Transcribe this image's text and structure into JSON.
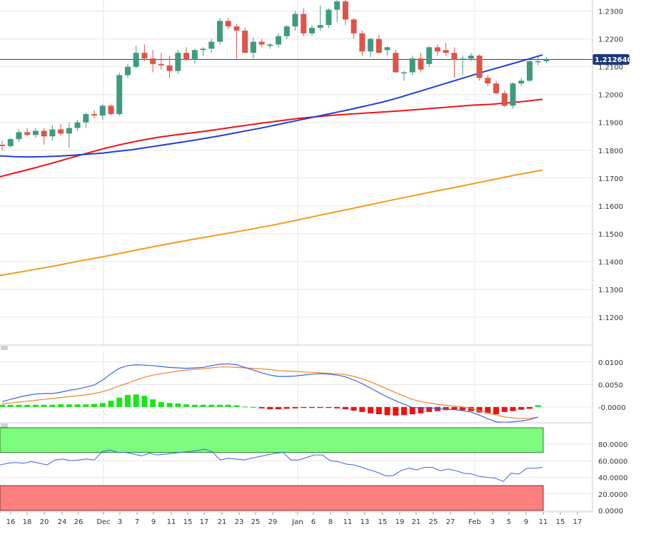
{
  "colors": {
    "bull": "#3e9b7f",
    "bear": "#e0534a",
    "sma_fast": "#1f3fd6",
    "sma_mid": "#e8141a",
    "sma_slow": "#f39a1e",
    "macd_line": "#3f62e8",
    "macd_signal": "#f0842a",
    "hist_pos": "#19e619",
    "hist_neg": "#ee1111",
    "rsi_line": "#3f62e8",
    "rsi_overbought": "#7cfb7c",
    "rsi_oversold": "#fb7f7f",
    "grid": "#e6e6e6",
    "price_line": "#1b3a7a",
    "price_tag": "#1b3a7a"
  },
  "price_tag": "1.212640",
  "chart_data": [
    {
      "type": "candlestick",
      "ylim": [
        1.11,
        1.234
      ],
      "yticks": [
        "1.2300",
        "1.2200",
        "1.2100",
        "1.2000",
        "1.1900",
        "1.1800",
        "1.1700",
        "1.1600",
        "1.1500",
        "1.1400",
        "1.1300",
        "1.1200"
      ],
      "ytick_values": [
        1.23,
        1.22,
        1.21,
        1.2,
        1.19,
        1.18,
        1.17,
        1.16,
        1.15,
        1.14,
        1.13,
        1.12
      ],
      "last_price": 1.21264,
      "candles": [
        [
          1.182,
          1.1835,
          1.18,
          1.1815
        ],
        [
          1.1815,
          1.1845,
          1.181,
          1.184
        ],
        [
          1.184,
          1.1875,
          1.183,
          1.1865
        ],
        [
          1.1865,
          1.188,
          1.185,
          1.1855
        ],
        [
          1.1855,
          1.188,
          1.1845,
          1.187
        ],
        [
          1.187,
          1.188,
          1.182,
          1.185
        ],
        [
          1.185,
          1.189,
          1.1835,
          1.1875
        ],
        [
          1.1875,
          1.1895,
          1.185,
          1.186
        ],
        [
          1.186,
          1.19,
          1.181,
          1.188
        ],
        [
          1.188,
          1.191,
          1.187,
          1.19
        ],
        [
          1.19,
          1.1935,
          1.188,
          1.193
        ],
        [
          1.193,
          1.1945,
          1.1915,
          1.1925
        ],
        [
          1.1925,
          1.1965,
          1.191,
          1.196
        ],
        [
          1.196,
          1.1965,
          1.1925,
          1.193
        ],
        [
          1.193,
          1.208,
          1.1925,
          1.207
        ],
        [
          1.207,
          1.211,
          1.206,
          1.21
        ],
        [
          1.21,
          1.2175,
          1.2095,
          1.215
        ],
        [
          1.215,
          1.218,
          1.212,
          1.213
        ],
        [
          1.213,
          1.216,
          1.208,
          1.211
        ],
        [
          1.211,
          1.215,
          1.209,
          1.2105
        ],
        [
          1.2105,
          1.214,
          1.206,
          1.2085
        ],
        [
          1.2085,
          1.216,
          1.2075,
          1.215
        ],
        [
          1.215,
          1.217,
          1.212,
          1.2125
        ],
        [
          1.2125,
          1.2165,
          1.211,
          1.216
        ],
        [
          1.216,
          1.217,
          1.214,
          1.2165
        ],
        [
          1.2165,
          1.22,
          1.215,
          1.219
        ],
        [
          1.219,
          1.2275,
          1.218,
          1.2265
        ],
        [
          1.2265,
          1.2275,
          1.2235,
          1.2245
        ],
        [
          1.2245,
          1.2255,
          1.213,
          1.223
        ],
        [
          1.223,
          1.224,
          1.215,
          1.215
        ],
        [
          1.215,
          1.2205,
          1.213,
          1.219
        ],
        [
          1.219,
          1.22,
          1.217,
          1.218
        ],
        [
          1.2175,
          1.2185,
          1.2165,
          1.218
        ],
        [
          1.218,
          1.222,
          1.217,
          1.221
        ],
        [
          1.221,
          1.225,
          1.22,
          1.2245
        ],
        [
          1.2245,
          1.23,
          1.223,
          1.229
        ],
        [
          1.229,
          1.231,
          1.221,
          1.222
        ],
        [
          1.222,
          1.225,
          1.221,
          1.224
        ],
        [
          1.224,
          1.232,
          1.223,
          1.225
        ],
        [
          1.225,
          1.231,
          1.224,
          1.2305
        ],
        [
          1.2305,
          1.2345,
          1.226,
          1.2335
        ],
        [
          1.2335,
          1.234,
          1.225,
          1.227
        ],
        [
          1.227,
          1.2275,
          1.22,
          1.222
        ],
        [
          1.222,
          1.223,
          1.214,
          1.2155
        ],
        [
          1.2155,
          1.2205,
          1.2135,
          1.22
        ],
        [
          1.22,
          1.2215,
          1.215,
          1.215
        ],
        [
          1.216,
          1.2175,
          1.214,
          1.217
        ],
        [
          1.215,
          1.216,
          1.208,
          1.208
        ],
        [
          1.208,
          1.2085,
          1.205,
          1.208
        ],
        [
          1.208,
          1.214,
          1.207,
          1.213
        ],
        [
          1.213,
          1.215,
          1.208,
          1.209
        ],
        [
          1.211,
          1.2175,
          1.21,
          1.217
        ],
        [
          1.217,
          1.218,
          1.214,
          1.2155
        ],
        [
          1.216,
          1.2185,
          1.214,
          1.215
        ],
        [
          1.215,
          1.217,
          1.206,
          1.2125
        ],
        [
          1.2125,
          1.214,
          1.207,
          1.213
        ],
        [
          1.213,
          1.215,
          1.212,
          1.214
        ],
        [
          1.214,
          1.2145,
          1.205,
          1.206
        ],
        [
          1.206,
          1.207,
          1.203,
          1.204
        ],
        [
          1.204,
          1.205,
          1.2,
          1.2005
        ],
        [
          1.2005,
          1.2015,
          1.1955,
          1.196
        ],
        [
          1.196,
          1.2045,
          1.195,
          1.204
        ],
        [
          1.204,
          1.206,
          1.203,
          1.205
        ],
        [
          1.205,
          1.213,
          1.2045,
          1.212
        ],
        [
          1.212,
          1.2135,
          1.2105,
          1.212
        ],
        [
          1.212,
          1.2135,
          1.2115,
          1.2126
        ]
      ],
      "sma_fast": [
        1.178,
        1.1777,
        1.1776,
        1.1777,
        1.1779,
        1.1782,
        1.1786,
        1.179,
        1.1796,
        1.1802,
        1.181,
        1.1818,
        1.1826,
        1.1834,
        1.1843,
        1.1852,
        1.1862,
        1.1872,
        1.1882,
        1.1893,
        1.1904,
        1.1915,
        1.1926,
        1.1937,
        1.1948,
        1.196,
        1.1972,
        1.1986,
        1.2002,
        1.2018,
        1.2034,
        1.205,
        1.2066,
        1.2082,
        1.2097,
        1.2112,
        1.2127,
        1.2143
      ],
      "sma_mid": [
        1.1705,
        1.1721,
        1.1737,
        1.1754,
        1.1772,
        1.179,
        1.1807,
        1.1822,
        1.1835,
        1.1846,
        1.1855,
        1.1863,
        1.1871,
        1.188,
        1.1889,
        1.1898,
        1.1906,
        1.1914,
        1.192,
        1.1926,
        1.193,
        1.1934,
        1.1938,
        1.1942,
        1.1947,
        1.1952,
        1.1957,
        1.1962,
        1.1965,
        1.197,
        1.1976,
        1.1983
      ],
      "sma_slow": [
        1.135,
        1.1367,
        1.1384,
        1.1403,
        1.1421,
        1.1441,
        1.146,
        1.1478,
        1.1495,
        1.1512,
        1.153,
        1.155,
        1.1571,
        1.1591,
        1.1612,
        1.1632,
        1.1652,
        1.1671,
        1.1691,
        1.1711,
        1.1729
      ]
    },
    {
      "type": "macd",
      "ylim": [
        -0.0035,
        0.0125
      ],
      "yticks": [
        "0.0100",
        "0.0050",
        "-0.0000"
      ],
      "ytick_values": [
        0.01,
        0.005,
        0.0
      ],
      "macd": [
        0.0012,
        0.0017,
        0.0022,
        0.0026,
        0.0029,
        0.003,
        0.003,
        0.0033,
        0.0037,
        0.004,
        0.0044,
        0.0049,
        0.006,
        0.0074,
        0.0086,
        0.0092,
        0.0094,
        0.0093,
        0.0092,
        0.009,
        0.0088,
        0.0087,
        0.0086,
        0.0087,
        0.0088,
        0.0092,
        0.0095,
        0.0096,
        0.0094,
        0.0088,
        0.0082,
        0.0076,
        0.0071,
        0.0068,
        0.0068,
        0.0069,
        0.0071,
        0.0073,
        0.0074,
        0.0073,
        0.0071,
        0.0067,
        0.006,
        0.0052,
        0.0042,
        0.0032,
        0.0022,
        0.0014,
        0.0006,
        -0.0001,
        -0.0002,
        -0.0002,
        -0.0003,
        -0.0005,
        -0.0006,
        -0.0008,
        -0.0011,
        -0.0018,
        -0.0026,
        -0.0033,
        -0.0034,
        -0.0033,
        -0.0031,
        -0.0028,
        -0.0022
      ],
      "signal": [
        0.0007,
        0.0009,
        0.0011,
        0.0013,
        0.0015,
        0.0017,
        0.0019,
        0.0021,
        0.0023,
        0.0025,
        0.0027,
        0.003,
        0.0034,
        0.004,
        0.0047,
        0.0053,
        0.006,
        0.0066,
        0.0071,
        0.0074,
        0.0077,
        0.008,
        0.0082,
        0.0084,
        0.0085,
        0.0087,
        0.0089,
        0.0089,
        0.0088,
        0.0087,
        0.0086,
        0.0085,
        0.0083,
        0.0081,
        0.008,
        0.0079,
        0.0078,
        0.0077,
        0.0076,
        0.0075,
        0.0074,
        0.0072,
        0.0068,
        0.0063,
        0.0056,
        0.0048,
        0.004,
        0.0032,
        0.0024,
        0.0017,
        0.0012,
        0.0009,
        0.0006,
        0.0004,
        0.0002,
        0.0,
        -0.0003,
        -0.0008,
        -0.0013,
        -0.0018,
        -0.0022,
        -0.0024,
        -0.0025,
        -0.0025,
        -0.0023
      ],
      "histogram": [
        0.0005,
        0.0005,
        0.0005,
        0.0005,
        0.0005,
        0.0005,
        0.0005,
        0.0006,
        0.0006,
        0.0006,
        0.0006,
        0.0007,
        0.0009,
        0.0014,
        0.0021,
        0.0027,
        0.0028,
        0.0025,
        0.0017,
        0.0011,
        0.0009,
        0.0008,
        0.0006,
        0.0005,
        0.0005,
        0.0005,
        0.0005,
        0.0005,
        0.0004,
        0.0001,
        0.0,
        -0.0003,
        -0.0005,
        -0.0005,
        -0.0004,
        -0.0003,
        -0.0002,
        -0.0002,
        -0.0002,
        -0.0002,
        -0.0003,
        -0.0005,
        -0.0008,
        -0.0011,
        -0.0014,
        -0.0016,
        -0.0018,
        -0.0019,
        -0.0018,
        -0.0016,
        -0.0014,
        -0.0011,
        -0.0009,
        -0.0007,
        -0.0006,
        -0.0007,
        -0.0009,
        -0.0012,
        -0.0014,
        -0.0016,
        -0.0011,
        -0.0009,
        -0.0006,
        -0.0004,
        0.0004
      ]
    },
    {
      "type": "rsi",
      "ylim": [
        0,
        100
      ],
      "yticks": [
        "80.0000",
        "60.0000",
        "40.0000",
        "20.0000",
        "0.0000"
      ],
      "ytick_values": [
        80,
        60,
        40,
        20,
        0
      ],
      "overbought_band": [
        70,
        100
      ],
      "oversold_band": [
        0,
        30
      ],
      "values": [
        55,
        57,
        58,
        57,
        59,
        57,
        55,
        61,
        62,
        60,
        61,
        62,
        61,
        71,
        73,
        70,
        70,
        68,
        66,
        69,
        67,
        68,
        69,
        70,
        71,
        72,
        74,
        71,
        61,
        63,
        62,
        61,
        63,
        65,
        67,
        69,
        70,
        61,
        61,
        64,
        67,
        67,
        60,
        59,
        56,
        55,
        52,
        49,
        46,
        42,
        42,
        48,
        51,
        49,
        52,
        52,
        48,
        50,
        48,
        45,
        44,
        41,
        40,
        39,
        35,
        45,
        44,
        51,
        51,
        52
      ]
    }
  ],
  "x_axis": {
    "labels": [
      "16",
      "18",
      "20",
      "24",
      "26",
      "Dec",
      "3",
      "7",
      "9",
      "11",
      "15",
      "17",
      "21",
      "23",
      "25",
      "29",
      "Jan",
      "6",
      "8",
      "11",
      "13",
      "15",
      "19",
      "21",
      "25",
      "27",
      "Feb",
      "3",
      "5",
      "9",
      "11",
      "15",
      "17"
    ]
  }
}
